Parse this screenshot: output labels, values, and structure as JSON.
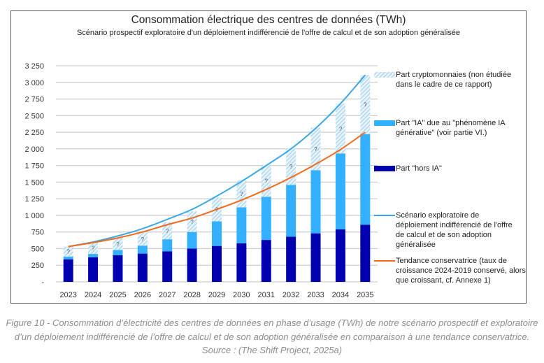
{
  "chart_data": {
    "type": "bar",
    "stacked": true,
    "title": "Consommation électrique des centres de données (TWh)",
    "subtitle": "Scénario prospectif exploratoire d'un déploiement indifférencié de l'offre de calcul et de son adoption généralisée",
    "xlabel": "",
    "ylabel": "",
    "ylim": [
      0,
      3250
    ],
    "yticks": [
      0,
      250,
      500,
      750,
      1000,
      1250,
      1500,
      1750,
      2000,
      2250,
      2500,
      2750,
      3000,
      3250
    ],
    "ytick_labels": [
      "-",
      "250",
      "500",
      "750",
      "1 000",
      "1 250",
      "1 500",
      "1 750",
      "2 000",
      "2 250",
      "2 500",
      "2 750",
      "3 000",
      "3 250"
    ],
    "grid": true,
    "legend_position": "right",
    "categories": [
      "2023",
      "2024",
      "2025",
      "2026",
      "2027",
      "2028",
      "2029",
      "2030",
      "2031",
      "2032",
      "2033",
      "2034",
      "2035"
    ],
    "series": [
      {
        "name": "Part \"hors IA\"",
        "kind": "bar",
        "color": "#0000b0",
        "values": [
          340,
          370,
          400,
          425,
          460,
          500,
          540,
          580,
          630,
          680,
          730,
          790,
          860
        ]
      },
      {
        "name": "Part \"IA\" due au \"phénomène IA générative\" (voir partie VI.)",
        "kind": "bar",
        "color": "#33b0ff",
        "values": [
          40,
          50,
          80,
          120,
          180,
          250,
          370,
          540,
          650,
          780,
          950,
          1140,
          1360
        ]
      },
      {
        "name": "Part cryptomonnaies (non étudiée dans le cadre de ce rapport)",
        "kind": "bar-hatched",
        "color": "#a8d4f0",
        "values": [
          150,
          180,
          180,
          195,
          260,
          310,
          360,
          410,
          480,
          550,
          640,
          750,
          890
        ]
      },
      {
        "name": "Scénario exploratoire de déploiement indifférencié de l'offre de calcul et de son adoption généralisée",
        "kind": "line",
        "color": "#3aa8e8",
        "values": [
          530,
          600,
          690,
          800,
          940,
          1090,
          1290,
          1510,
          1750,
          2000,
          2310,
          2680,
          3110
        ]
      },
      {
        "name": "Tendance conservatrice (taux de croissance 2024-2019 conservé, alors que croissant, cf. Annexe 1)",
        "kind": "line",
        "color": "#f26a1b",
        "values": [
          530,
          590,
          660,
          750,
          860,
          960,
          1090,
          1230,
          1390,
          1570,
          1770,
          1990,
          2250
        ]
      }
    ],
    "annotations": {
      "crypto_bar_label": "?"
    }
  },
  "legend": [
    {
      "label": "Part cryptomonnaies (non étudiée dans le cadre de ce rapport)"
    },
    {
      "label": "Part \"IA\" due au \"phénomène IA générative\" (voir partie VI.)"
    },
    {
      "label": "Part \"hors IA\""
    },
    {
      "label": "Scénario exploratoire de déploiement indifférencié de l'offre de calcul et de son adoption généralisée"
    },
    {
      "label": "Tendance conservatrice (taux de croissance 2024-2019 conservé, alors que croissant, cf. Annexe 1)"
    }
  ],
  "caption": "Figure 10 - Consommation d’électricité des centres de données en phase d’usage (TWh) de notre scénario prospectif et exploratoire d’un déploiement indifférencié de l’offre de calcul et de son adoption généralisée en comparaison à une tendance conservatrice. Source : (The Shift Project, 2025a)"
}
